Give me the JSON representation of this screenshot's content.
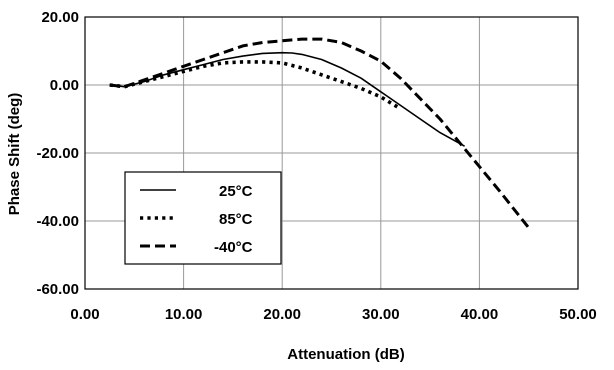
{
  "chart_data": {
    "type": "line",
    "title": "",
    "xlabel": "Attenuation (dB)",
    "ylabel": "Phase Shift (deg)",
    "xlim": [
      0,
      50
    ],
    "ylim": [
      -60,
      20
    ],
    "x_ticks": [
      "0.00",
      "10.00",
      "20.00",
      "30.00",
      "40.00",
      "50.00"
    ],
    "y_ticks": [
      "20.00",
      "0.00",
      "-20.00",
      "-40.00",
      "-60.00"
    ],
    "grid": true,
    "legend_position": "lower-left",
    "series": [
      {
        "name": "25°C",
        "style": "solid",
        "x": [
          2.5,
          4,
          6,
          8,
          10,
          12,
          14,
          16,
          18,
          20,
          21,
          22,
          24,
          26,
          28,
          30,
          32,
          34,
          36,
          38.5
        ],
        "y": [
          0,
          -0.5,
          1,
          3,
          4.5,
          6,
          7.5,
          8.5,
          9.3,
          9.5,
          9.4,
          9,
          7.5,
          5,
          2,
          -2,
          -6,
          -10,
          -14,
          -18
        ]
      },
      {
        "name": "85°C",
        "style": "dotted",
        "x": [
          2.5,
          4,
          6,
          8,
          10,
          12,
          14,
          16,
          18,
          20,
          22,
          24,
          26,
          28,
          30,
          32
        ],
        "y": [
          0,
          -0.5,
          1,
          2.5,
          4,
          5.5,
          6.5,
          6.8,
          6.8,
          6.5,
          5,
          3,
          1,
          -1,
          -3.5,
          -7
        ]
      },
      {
        "name": "-40°C",
        "style": "dashed",
        "x": [
          2.5,
          4,
          6,
          8,
          10,
          12,
          14,
          16,
          18,
          20,
          22,
          24,
          26,
          28,
          30,
          32,
          34,
          36,
          38,
          40,
          42,
          45
        ],
        "y": [
          0,
          -0.5,
          1.5,
          3.5,
          5.5,
          7.5,
          9.5,
          11.5,
          12.5,
          13,
          13.5,
          13.5,
          12.5,
          10,
          7,
          2,
          -4,
          -10,
          -17,
          -24,
          -31,
          -42
        ]
      }
    ]
  }
}
